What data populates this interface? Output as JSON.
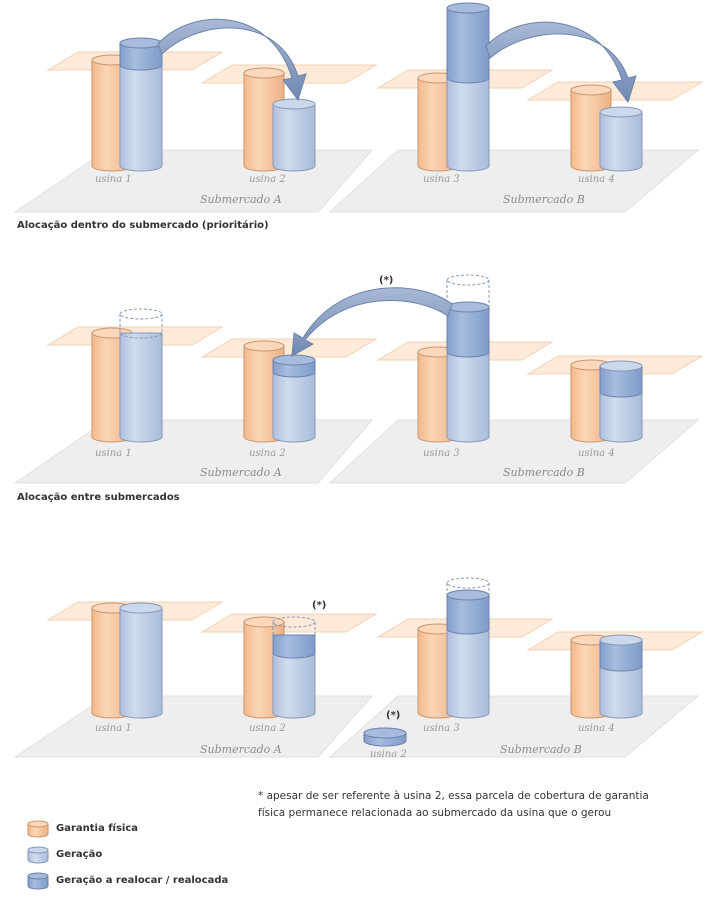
{
  "colors": {
    "garantia_fill": "#f8c9a1",
    "garantia_stroke": "#c9966e",
    "geracao_fill": "#bccde6",
    "geracao_stroke": "#8898b8",
    "realocar_fill": "#94b0d8",
    "realocar_stroke": "#6c82ad",
    "plane_fill": "#fde7d3",
    "plane_stroke": "#f0c9a6",
    "floor_fill": "#eeeeee",
    "floor_stroke": "#dddddd",
    "arrow_fill": "#8fa3c4",
    "arrow_stroke": "#6d83aa"
  },
  "panels": [
    {
      "id": "dentro",
      "caption": "Alocação dentro do submercado (prioritário)",
      "plant_labels": [
        "usina 1",
        "usina 2",
        "usina 3",
        "usina 4"
      ],
      "market_labels": [
        "Submercado A",
        "Submercado B"
      ],
      "star_labels": []
    },
    {
      "id": "entre",
      "caption": "Alocação entre submercados",
      "plant_labels": [
        "usina 1",
        "usina 2",
        "usina 3",
        "usina 4"
      ],
      "market_labels": [
        "Submercado A",
        "Submercado B"
      ],
      "star_labels": [
        "(*)"
      ]
    },
    {
      "id": "resultado",
      "caption": "",
      "plant_labels": [
        "usina 1",
        "usina 2",
        "usina 3",
        "usina 4",
        "usina 2"
      ],
      "market_labels": [
        "Submercado A",
        "Submercado B"
      ],
      "star_labels": [
        "(*)",
        "(*)"
      ]
    }
  ],
  "footnote": {
    "line1": "* apesar de ser referente à usina 2, essa parcela de cobertura de garantia",
    "line2": "física permanece relacionada ao submercado da usina que o gerou"
  },
  "legend": [
    {
      "label": "Garantia física",
      "swatch": "garantia"
    },
    {
      "label": "Geração",
      "swatch": "geracao"
    },
    {
      "label": "Geração a realocar / realocada",
      "swatch": "realocar"
    }
  ]
}
